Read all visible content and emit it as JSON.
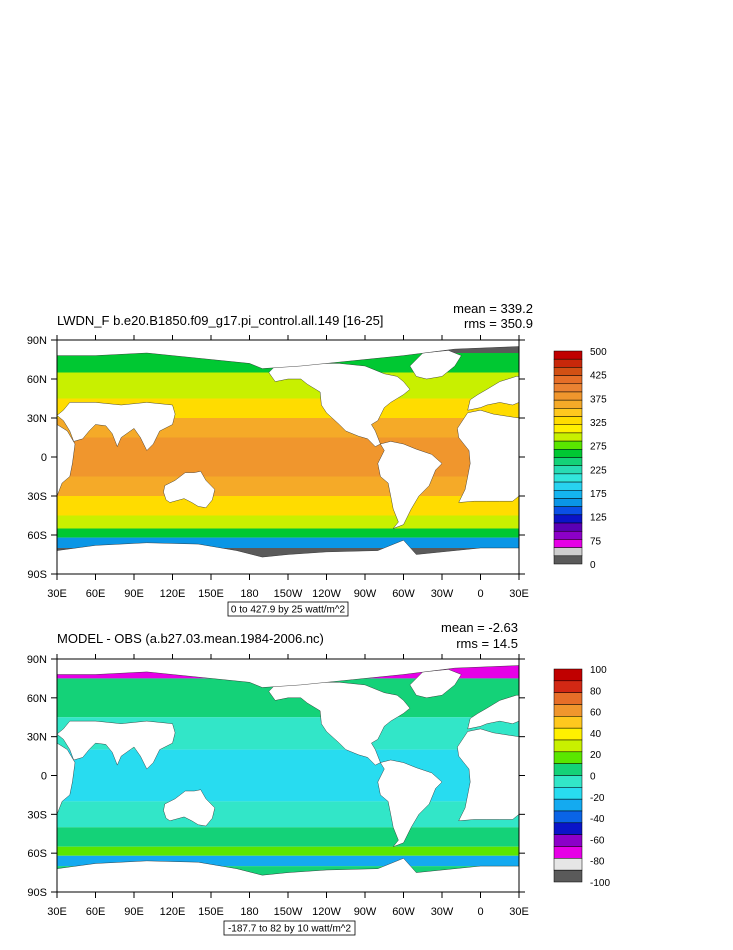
{
  "panels": [
    {
      "title": "LWDN_F b.e20.B1850.f09_g17.pi_control.all.149 [16-25]",
      "mean": "mean = 339.2",
      "rms": "rms = 350.9",
      "range_label": "0 to 427.9 by 25 watt/m^2"
    },
    {
      "title": "MODEL - OBS (a.b27.03.mean.1984-2006.nc)",
      "mean": "mean = -2.63",
      "rms": "rms = 14.5",
      "range_label": "-187.7 to 82 by 10 watt/m^2"
    }
  ],
  "chart_data": [
    {
      "type": "heatmap",
      "title": "LWDN_F b.e20.B1850.f09_g17.pi_control.all.149 [16-25]",
      "annotations": [
        "mean = 339.2",
        "rms = 350.9",
        "0 to 427.9 by 25 watt/m^2"
      ],
      "x_ticks": [
        "30E",
        "60E",
        "90E",
        "120E",
        "150E",
        "180",
        "150W",
        "120W",
        "90W",
        "60W",
        "30W",
        "0",
        "30E"
      ],
      "y_ticks": [
        "90N",
        "60N",
        "30N",
        "0",
        "30S",
        "60S",
        "90S"
      ],
      "xlim": [
        30,
        390
      ],
      "ylim": [
        -90,
        90
      ],
      "colorbar_labels": [
        "500",
        "425",
        "375",
        "325",
        "275",
        "225",
        "175",
        "125",
        "75",
        "0"
      ],
      "colorbar_colors": [
        "#5a5a5a",
        "#cfcfcf",
        "#e600e6",
        "#8c00c8",
        "#5a00b4",
        "#0a14c8",
        "#0a50e6",
        "#0a96e6",
        "#14b4f0",
        "#28d2f0",
        "#32e6dc",
        "#28dcb4",
        "#14d278",
        "#00c832",
        "#5ae600",
        "#c8f000",
        "#fff000",
        "#ffdc00",
        "#ffc81e",
        "#f5aa28",
        "#f0962d",
        "#eb8232",
        "#e66e28",
        "#d25014",
        "#c8280a",
        "#c00000"
      ],
      "ocean_bands": [
        {
          "lat": [
            80,
            90
          ],
          "value": 0
        },
        {
          "lat": [
            65,
            80
          ],
          "value": 250
        },
        {
          "lat": [
            45,
            65
          ],
          "value": 300
        },
        {
          "lat": [
            30,
            45
          ],
          "value": 340
        },
        {
          "lat": [
            15,
            30
          ],
          "value": 370
        },
        {
          "lat": [
            -15,
            15
          ],
          "value": 400
        },
        {
          "lat": [
            -30,
            -15
          ],
          "value": 380
        },
        {
          "lat": [
            -45,
            -30
          ],
          "value": 340
        },
        {
          "lat": [
            -55,
            -45
          ],
          "value": 300
        },
        {
          "lat": [
            -62,
            -55
          ],
          "value": 250
        },
        {
          "lat": [
            -70,
            -62
          ],
          "value": 150
        },
        {
          "lat": [
            -90,
            -70
          ],
          "value": 0
        }
      ]
    },
    {
      "type": "heatmap",
      "title": "MODEL - OBS (a.b27.03.mean.1984-2006.nc)",
      "annotations": [
        "mean = -2.63",
        "rms = 14.5",
        "-187.7 to 82 by 10 watt/m^2"
      ],
      "x_ticks": [
        "30E",
        "60E",
        "90E",
        "120E",
        "150E",
        "180",
        "150W",
        "120W",
        "90W",
        "60W",
        "30W",
        "0",
        "30E"
      ],
      "y_ticks": [
        "90N",
        "60N",
        "30N",
        "0",
        "30S",
        "60S",
        "90S"
      ],
      "xlim": [
        30,
        390
      ],
      "ylim": [
        -90,
        90
      ],
      "colorbar_labels": [
        "100",
        "80",
        "60",
        "40",
        "20",
        "0",
        "-20",
        "-40",
        "-60",
        "-80",
        "-100"
      ],
      "colorbar_colors": [
        "#5a5a5a",
        "#e6e6e6",
        "#e600e6",
        "#8c00c8",
        "#0a14c8",
        "#0a64e6",
        "#14aaf0",
        "#28dcf0",
        "#32e6c8",
        "#14d278",
        "#5ae600",
        "#c8f000",
        "#fff000",
        "#ffc81e",
        "#f0962d",
        "#e66e28",
        "#d22814",
        "#c00000"
      ],
      "ocean_bands": [
        {
          "lat": [
            75,
            85
          ],
          "value": -70
        },
        {
          "lat": [
            45,
            75
          ],
          "value": 0
        },
        {
          "lat": [
            20,
            45
          ],
          "value": -10
        },
        {
          "lat": [
            -20,
            20
          ],
          "value": -15
        },
        {
          "lat": [
            -40,
            -20
          ],
          "value": -5
        },
        {
          "lat": [
            -55,
            -40
          ],
          "value": 5
        },
        {
          "lat": [
            -62,
            -55
          ],
          "value": 20
        },
        {
          "lat": [
            -70,
            -62
          ],
          "value": -30
        },
        {
          "lat": [
            -90,
            -70
          ],
          "value": 0
        }
      ]
    }
  ]
}
